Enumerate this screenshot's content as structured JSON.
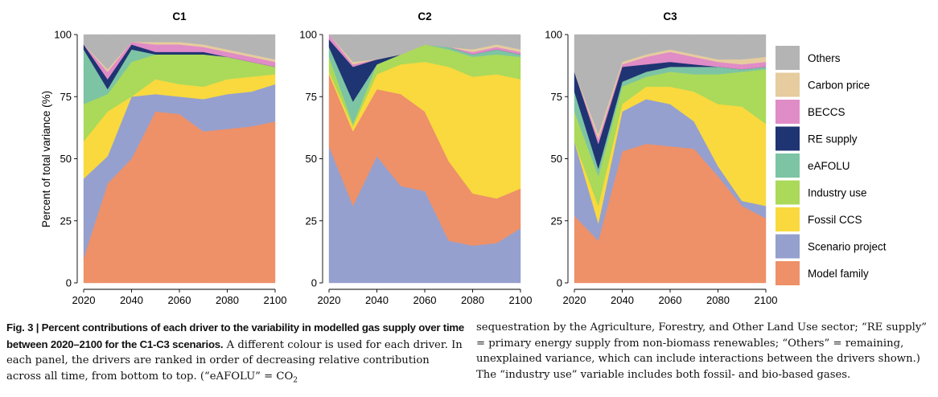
{
  "figure": {
    "ylabel": "Percent of total variance (%)",
    "drivers": [
      {
        "name": "Model family",
        "color": "#EE9068"
      },
      {
        "name": "Scenario project",
        "color": "#95A0CE"
      },
      {
        "name": "Fossil CCS",
        "color": "#F9D93E"
      },
      {
        "name": "Industry use",
        "color": "#ABD95A"
      },
      {
        "name": "eAFOLU",
        "color": "#7CC4A3"
      },
      {
        "name": "RE supply",
        "color": "#1F3472"
      },
      {
        "name": "BECCS",
        "color": "#E08CC6"
      },
      {
        "name": "Carbon price",
        "color": "#E6CC9E"
      },
      {
        "name": "Others",
        "color": "#B4B4B4"
      }
    ]
  },
  "chart_data": [
    {
      "type": "area",
      "title": "C1",
      "xlabel": "",
      "ylabel": "Percent of total variance (%)",
      "x": [
        2020,
        2030,
        2040,
        2050,
        2060,
        2070,
        2080,
        2090,
        2100
      ],
      "xticks": [
        2020,
        2040,
        2060,
        2080,
        2100
      ],
      "yticks": [
        0,
        25,
        50,
        75,
        100
      ],
      "ylim": [
        0,
        100
      ],
      "stacked": true,
      "series": [
        {
          "name": "Model family",
          "values": [
            10,
            40,
            50,
            69,
            68,
            61,
            62,
            63,
            65
          ]
        },
        {
          "name": "Scenario project",
          "values": [
            32,
            11,
            25,
            7,
            7,
            13,
            14,
            14,
            15
          ]
        },
        {
          "name": "Fossil CCS",
          "values": [
            15,
            18,
            0,
            6,
            5,
            5,
            6,
            6,
            4
          ]
        },
        {
          "name": "Industry use",
          "values": [
            15,
            7,
            14,
            10,
            12,
            13,
            9,
            6,
            3
          ]
        },
        {
          "name": "eAFOLU",
          "values": [
            22,
            2,
            5,
            0,
            0,
            0,
            0,
            0,
            0
          ]
        },
        {
          "name": "RE supply",
          "values": [
            2,
            4,
            2,
            1,
            1,
            1,
            0,
            0,
            0
          ]
        },
        {
          "name": "BECCS",
          "values": [
            0,
            3,
            1,
            3,
            3,
            2,
            2,
            2,
            2
          ]
        },
        {
          "name": "Carbon price",
          "values": [
            0,
            1,
            0,
            1,
            1,
            1,
            1,
            1,
            1
          ]
        },
        {
          "name": "Others",
          "values": [
            4,
            14,
            3,
            3,
            3,
            4,
            6,
            8,
            10
          ]
        }
      ]
    },
    {
      "type": "area",
      "title": "C2",
      "xlabel": "",
      "ylabel": "",
      "x": [
        2020,
        2030,
        2040,
        2050,
        2060,
        2070,
        2080,
        2090,
        2100
      ],
      "xticks": [
        2020,
        2040,
        2060,
        2080,
        2100
      ],
      "yticks": [
        0,
        25,
        50,
        75,
        100
      ],
      "ylim": [
        0,
        100
      ],
      "stacked": true,
      "series": [
        {
          "name": "Scenario project",
          "values": [
            55,
            31,
            51,
            39,
            37,
            17,
            15,
            16,
            22
          ]
        },
        {
          "name": "Model family",
          "values": [
            29,
            30,
            27,
            37,
            32,
            32,
            21,
            18,
            16
          ]
        },
        {
          "name": "Fossil CCS",
          "values": [
            1,
            2,
            6,
            12,
            20,
            38,
            47,
            50,
            44
          ]
        },
        {
          "name": "Industry use",
          "values": [
            6,
            1,
            4,
            4,
            7,
            7,
            8,
            8,
            9
          ]
        },
        {
          "name": "eAFOLU",
          "values": [
            4,
            9,
            0,
            0,
            0,
            1,
            1,
            2,
            1
          ]
        },
        {
          "name": "RE supply",
          "values": [
            3,
            14,
            2,
            0,
            0,
            0,
            0,
            0,
            0
          ]
        },
        {
          "name": "BECCS",
          "values": [
            2,
            1,
            0,
            0,
            0,
            0,
            1,
            1,
            1
          ]
        },
        {
          "name": "Carbon price",
          "values": [
            0,
            1,
            0,
            0,
            0,
            0,
            1,
            1,
            1
          ]
        },
        {
          "name": "Others",
          "values": [
            0,
            11,
            10,
            8,
            4,
            5,
            6,
            4,
            6
          ]
        }
      ]
    },
    {
      "type": "area",
      "title": "C3",
      "xlabel": "",
      "ylabel": "",
      "x": [
        2020,
        2030,
        2040,
        2050,
        2060,
        2070,
        2080,
        2090,
        2100
      ],
      "xticks": [
        2020,
        2040,
        2060,
        2080,
        2100
      ],
      "yticks": [
        0,
        25,
        50,
        75,
        100
      ],
      "ylim": [
        0,
        100
      ],
      "stacked": true,
      "series": [
        {
          "name": "Model family",
          "values": [
            27,
            17,
            53,
            56,
            55,
            54,
            43,
            31,
            26
          ]
        },
        {
          "name": "Scenario project",
          "values": [
            30,
            7,
            16,
            18,
            17,
            11,
            4,
            2,
            5
          ]
        },
        {
          "name": "Fossil CCS",
          "values": [
            0,
            7,
            3,
            5,
            7,
            12,
            25,
            38,
            33
          ]
        },
        {
          "name": "Industry use",
          "values": [
            12,
            12,
            7,
            4,
            6,
            7,
            12,
            14,
            22
          ]
        },
        {
          "name": "eAFOLU",
          "values": [
            8,
            3,
            2,
            2,
            2,
            3,
            3,
            1,
            1
          ]
        },
        {
          "name": "RE supply",
          "values": [
            8,
            10,
            6,
            3,
            2,
            1,
            0,
            0,
            0
          ]
        },
        {
          "name": "BECCS",
          "values": [
            0,
            2,
            1,
            3,
            4,
            3,
            2,
            2,
            2
          ]
        },
        {
          "name": "Carbon price",
          "values": [
            0,
            2,
            1,
            1,
            1,
            1,
            1,
            2,
            2
          ]
        },
        {
          "name": "Others",
          "values": [
            15,
            40,
            11,
            8,
            6,
            8,
            10,
            10,
            9
          ]
        }
      ]
    }
  ],
  "caption": {
    "left": {
      "bold": "Fig. 3 | Percent contributions of each driver to the variability in modelled gas supply over time between 2020–2100 for the C1-C3 scenarios.",
      "text": " A different colour is used for each driver. In each panel, the drivers are ranked in order of decreasing relative contribution across all time, from bottom to top. (“eAFOLU” = CO",
      "sub": "2"
    },
    "right": "sequestration by the Agriculture, Forestry, and Other Land Use sector; “RE supply” = primary energy supply from non-biomass renewables; “Others” = remaining, unexplained variance, which can include interactions between the drivers shown.) The “industry use” variable includes both fossil- and bio-based gases."
  }
}
